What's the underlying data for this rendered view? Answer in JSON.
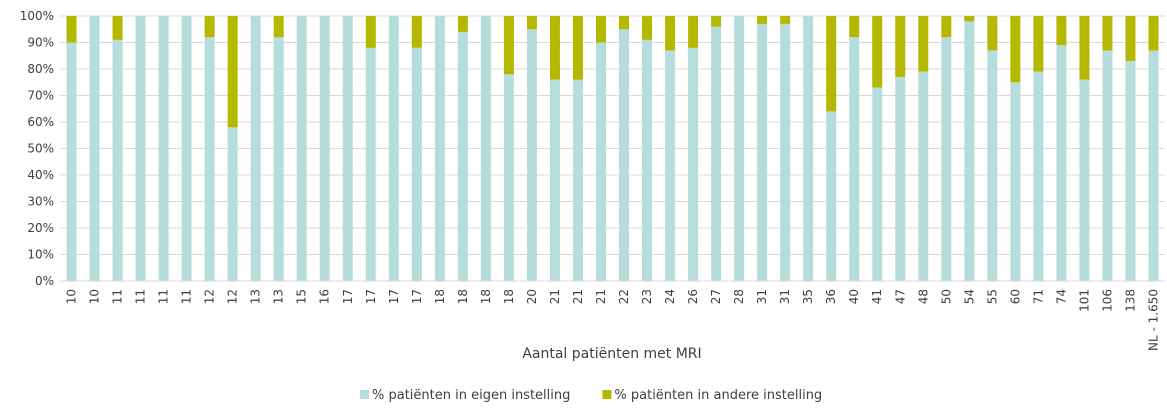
{
  "chart_data": {
    "type": "stacked-bar",
    "x_label": "Aantal patiënten met MRI",
    "categories": [
      "10",
      "10",
      "11",
      "11",
      "11",
      "11",
      "12",
      "12",
      "13",
      "13",
      "15",
      "16",
      "17",
      "17",
      "17",
      "17",
      "18",
      "18",
      "18",
      "18",
      "20",
      "21",
      "21",
      "21",
      "22",
      "23",
      "24",
      "26",
      "27",
      "28",
      "31",
      "31",
      "35",
      "36",
      "40",
      "41",
      "47",
      "48",
      "50",
      "54",
      "55",
      "60",
      "71",
      "74",
      "101",
      "106",
      "138",
      "NL - 1.650"
    ],
    "series": [
      {
        "name": "% patiënten in eigen instelling",
        "color": "#b6dcdc",
        "values": [
          90,
          100,
          91,
          100,
          100,
          100,
          92,
          58,
          100,
          92,
          100,
          100,
          100,
          88,
          100,
          88,
          100,
          94,
          100,
          78,
          95,
          76,
          76,
          90,
          95,
          91,
          87,
          88,
          96,
          100,
          97,
          97,
          100,
          64,
          92,
          73,
          77,
          79,
          92,
          98,
          87,
          75,
          79,
          89,
          76,
          87,
          83,
          87
        ]
      },
      {
        "name": "% patiënten in andere instelling",
        "color": "#b4b800",
        "values": [
          10,
          0,
          9,
          0,
          0,
          0,
          8,
          42,
          0,
          8,
          0,
          0,
          0,
          12,
          0,
          12,
          0,
          6,
          0,
          22,
          5,
          24,
          24,
          10,
          5,
          9,
          13,
          12,
          4,
          0,
          3,
          3,
          0,
          36,
          8,
          27,
          23,
          21,
          8,
          2,
          13,
          25,
          21,
          11,
          24,
          13,
          17,
          13
        ]
      }
    ],
    "ylim": [
      0,
      100
    ],
    "yticks": [
      {
        "value": 0,
        "label": "0%"
      },
      {
        "value": 10,
        "label": "10%"
      },
      {
        "value": 20,
        "label": "20%"
      },
      {
        "value": 30,
        "label": "30%"
      },
      {
        "value": 40,
        "label": "40%"
      },
      {
        "value": 50,
        "label": "50%"
      },
      {
        "value": 60,
        "label": "60%"
      },
      {
        "value": 70,
        "label": "70%"
      },
      {
        "value": 80,
        "label": "80%"
      },
      {
        "value": 90,
        "label": "90%"
      },
      {
        "value": 100,
        "label": "100%"
      }
    ],
    "grid": true
  }
}
